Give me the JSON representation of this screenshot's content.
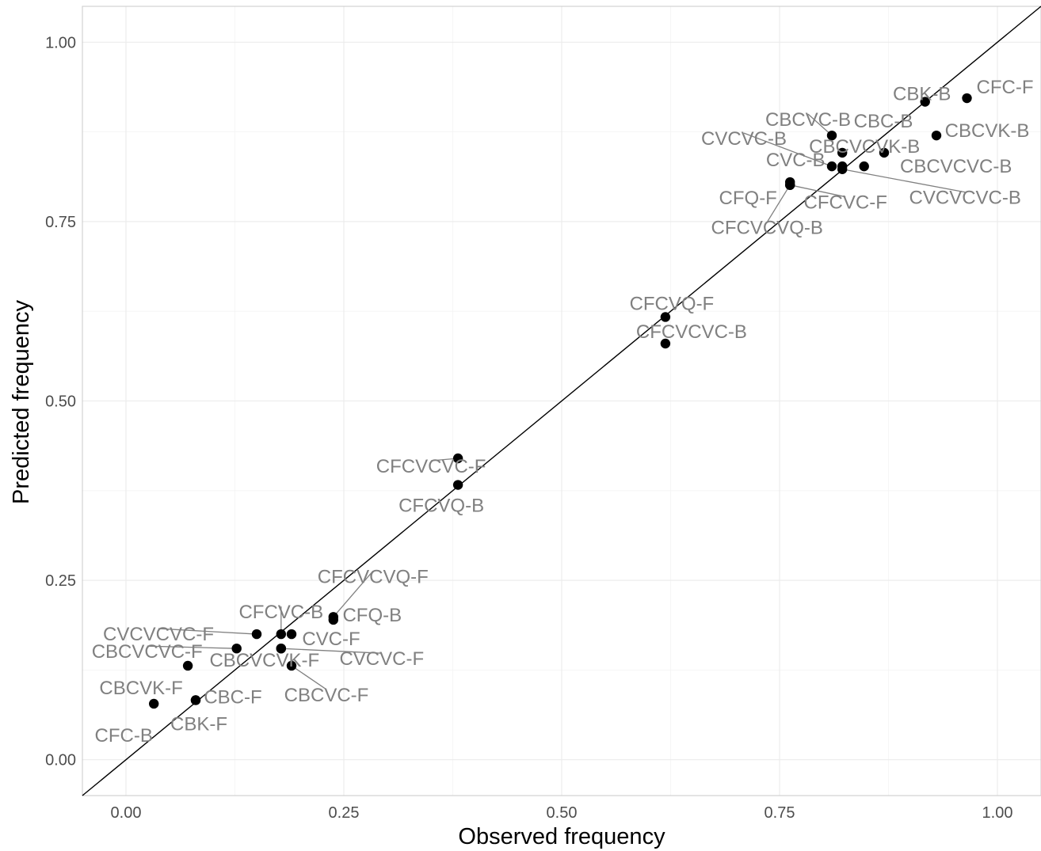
{
  "chart_data": {
    "type": "scatter",
    "title": "",
    "xlabel": "Observed frequency",
    "ylabel": "Predicted frequency",
    "xlim": [
      -0.05,
      1.05
    ],
    "ylim": [
      -0.05,
      1.05
    ],
    "x_ticks": [
      0.0,
      0.25,
      0.5,
      0.75,
      1.0
    ],
    "y_ticks": [
      0.0,
      0.25,
      0.5,
      0.75,
      1.0
    ],
    "x_tick_labels": [
      "0.00",
      "0.25",
      "0.50",
      "0.75",
      "1.00"
    ],
    "y_tick_labels": [
      "0.00",
      "0.25",
      "0.50",
      "0.75",
      "1.00"
    ],
    "grid": true,
    "reference_line": "y = x",
    "points": [
      {
        "label": "CFC-F",
        "x": 0.965,
        "y": 0.922
      },
      {
        "label": "CBK-B",
        "x": 0.917,
        "y": 0.917
      },
      {
        "label": "CBCVK-B",
        "x": 0.93,
        "y": 0.87
      },
      {
        "label": "CBC-B",
        "x": 0.87,
        "y": 0.846
      },
      {
        "label": "CBCVC-B",
        "x": 0.81,
        "y": 0.87
      },
      {
        "label": "CBCVCVK-B",
        "x": 0.822,
        "y": 0.846
      },
      {
        "label": "CVCVC-B",
        "x": 0.81,
        "y": 0.827
      },
      {
        "label": "CBCVCVC-B",
        "x": 0.847,
        "y": 0.827
      },
      {
        "label": "CVC-B",
        "x": 0.822,
        "y": 0.827
      },
      {
        "label": "CVCVCVC-B",
        "x": 0.822,
        "y": 0.823
      },
      {
        "label": "CFQ-F",
        "x": 0.762,
        "y": 0.805
      },
      {
        "label": "CFCVC-F",
        "x": 0.762,
        "y": 0.801
      },
      {
        "label": "CFCVCVQ-B",
        "x": 0.762,
        "y": 0.801
      },
      {
        "label": "CFCVQ-F",
        "x": 0.619,
        "y": 0.617
      },
      {
        "label": "CFCVCVC-B",
        "x": 0.619,
        "y": 0.58
      },
      {
        "label": "CFCVCVC-F",
        "x": 0.381,
        "y": 0.42
      },
      {
        "label": "CFCVQ-B",
        "x": 0.381,
        "y": 0.383
      },
      {
        "label": "CFCVCVQ-F",
        "x": 0.238,
        "y": 0.199
      },
      {
        "label": "CFQ-B",
        "x": 0.238,
        "y": 0.195
      },
      {
        "label": "CFCVC-B",
        "x": 0.178,
        "y": 0.175
      },
      {
        "label": "CVCVCVC-F",
        "x": 0.15,
        "y": 0.175
      },
      {
        "label": "CVC-F",
        "x": 0.19,
        "y": 0.175
      },
      {
        "label": "CBCVCVC-F",
        "x": 0.127,
        "y": 0.155
      },
      {
        "label": "CBCVCVK-F",
        "x": 0.178,
        "y": 0.155
      },
      {
        "label": "CVCVC-F",
        "x": 0.178,
        "y": 0.155
      },
      {
        "label": "CBCVK-F",
        "x": 0.071,
        "y": 0.131
      },
      {
        "label": "CBCVC-F",
        "x": 0.19,
        "y": 0.131
      },
      {
        "label": "CBC-F",
        "x": 0.08,
        "y": 0.083
      },
      {
        "label": "CBK-F",
        "x": 0.08,
        "y": 0.083
      },
      {
        "label": "CFC-B",
        "x": 0.032,
        "y": 0.078
      }
    ]
  }
}
